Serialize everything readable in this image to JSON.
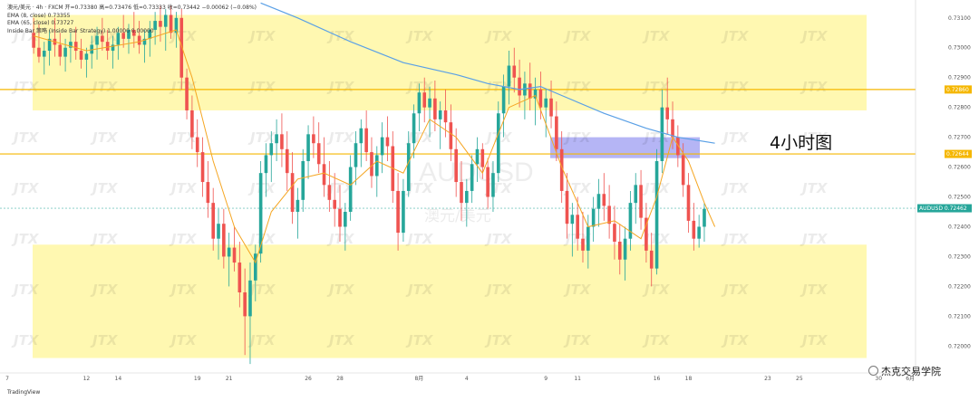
{
  "legend": {
    "line1": "澳元/美元 · 4h · FXCM   开=0.73380 高=0.73476 低=0.73333 收=0.73442 −0.00062 (−0.08%)",
    "line2": "EMA (8, close)  0.73355",
    "line3": "EMA (65, close)  0.73727",
    "line4": "Inside Bar 策略 (Inside Bar Strategy)  1.00000  0.00000"
  },
  "annotation": "4小时图",
  "watermark": "JTX",
  "center_watermark_symbol": "AUDUSD",
  "center_watermark_name": "澳元/美元",
  "tradingview": "TradingView",
  "wechat_label": "杰克交易学院",
  "colors": {
    "up": "#26a69a",
    "down": "#ef5350",
    "ema_fast": "#f5a623",
    "ema_slow": "#5aa0e6",
    "zone_yellow": "#fff7a8",
    "zone_blue": "#9c9cf2",
    "hline": "#f5b700"
  },
  "chart_data": {
    "type": "candlestick",
    "symbol": "AUDUSD",
    "timeframe": "4h",
    "y_ticks": [
      "0.73100",
      "0.73000",
      "0.72900",
      "0.72800",
      "0.72700",
      "0.72600",
      "0.72500",
      "0.72400",
      "0.72300",
      "0.72200",
      "0.72100",
      "0.72000"
    ],
    "price_labels": [
      {
        "value": 0.7286,
        "text": "0.72860",
        "color": "#f5b700"
      },
      {
        "value": 0.72644,
        "text": "0.72644",
        "color": "#f5b700"
      },
      {
        "value": 0.72462,
        "text": "AUDUSD 0.72462",
        "color": "#26a69a"
      }
    ],
    "x_ticks": [
      {
        "label": "7",
        "t": 0
      },
      {
        "label": "12",
        "t": 15
      },
      {
        "label": "14",
        "t": 21
      },
      {
        "label": "19",
        "t": 36
      },
      {
        "label": "21",
        "t": 42
      },
      {
        "label": "26",
        "t": 57
      },
      {
        "label": "28",
        "t": 63
      },
      {
        "label": "8月",
        "t": 78
      },
      {
        "label": "4",
        "t": 87
      },
      {
        "label": "9",
        "t": 102
      },
      {
        "label": "11",
        "t": 108
      },
      {
        "label": "16",
        "t": 123
      },
      {
        "label": "18",
        "t": 129
      },
      {
        "label": "23",
        "t": 144
      },
      {
        "label": "25",
        "t": 150
      },
      {
        "label": "30",
        "t": 165
      },
      {
        "label": "6月",
        "t": 171
      }
    ],
    "ylim": [
      0.7191,
      0.7316
    ],
    "zones": [
      {
        "from": 0.7279,
        "to": 0.7311,
        "color": "yellow"
      },
      {
        "from": 0.7196,
        "to": 0.7234,
        "color": "yellow"
      },
      {
        "from": 0.7263,
        "to": 0.727,
        "color": "blue"
      }
    ],
    "candles": [
      [
        0.7305,
        0.731,
        0.7298,
        0.73
      ],
      [
        0.73,
        0.7308,
        0.7295,
        0.7297
      ],
      [
        0.7297,
        0.7302,
        0.7291,
        0.7299
      ],
      [
        0.7299,
        0.7306,
        0.7294,
        0.7303
      ],
      [
        0.7303,
        0.731,
        0.7297,
        0.7301
      ],
      [
        0.7301,
        0.7305,
        0.7294,
        0.7297
      ],
      [
        0.7297,
        0.7303,
        0.7292,
        0.73
      ],
      [
        0.73,
        0.7305,
        0.7295,
        0.7302
      ],
      [
        0.7302,
        0.7307,
        0.7296,
        0.7299
      ],
      [
        0.7299,
        0.7303,
        0.7293,
        0.7296
      ],
      [
        0.7296,
        0.73,
        0.729,
        0.7298
      ],
      [
        0.7298,
        0.7304,
        0.7293,
        0.7301
      ],
      [
        0.7301,
        0.7307,
        0.7296,
        0.7304
      ],
      [
        0.7304,
        0.731,
        0.7299,
        0.7302
      ],
      [
        0.7302,
        0.7306,
        0.7296,
        0.7299
      ],
      [
        0.7299,
        0.7304,
        0.7293,
        0.7301
      ],
      [
        0.7301,
        0.7307,
        0.7296,
        0.7305
      ],
      [
        0.7305,
        0.7311,
        0.73,
        0.7303
      ],
      [
        0.7303,
        0.7308,
        0.7298,
        0.7306
      ],
      [
        0.7306,
        0.7312,
        0.73,
        0.7304
      ],
      [
        0.7304,
        0.7309,
        0.7298,
        0.7301
      ],
      [
        0.7301,
        0.7306,
        0.7295,
        0.7303
      ],
      [
        0.7303,
        0.7309,
        0.7297,
        0.7306
      ],
      [
        0.7306,
        0.7312,
        0.7301,
        0.7309
      ],
      [
        0.7309,
        0.7314,
        0.7302,
        0.7307
      ],
      [
        0.7307,
        0.7313,
        0.7299,
        0.7311
      ],
      [
        0.7311,
        0.7314,
        0.7303,
        0.7305
      ],
      [
        0.7305,
        0.7312,
        0.73,
        0.731
      ],
      [
        0.731,
        0.7313,
        0.7286,
        0.729
      ],
      [
        0.729,
        0.7293,
        0.7276,
        0.7279
      ],
      [
        0.7279,
        0.7284,
        0.7266,
        0.727
      ],
      [
        0.727,
        0.7276,
        0.726,
        0.7265
      ],
      [
        0.7265,
        0.727,
        0.725,
        0.7255
      ],
      [
        0.7255,
        0.7262,
        0.7243,
        0.7248
      ],
      [
        0.7248,
        0.7253,
        0.7232,
        0.7236
      ],
      [
        0.7236,
        0.7246,
        0.7229,
        0.7241
      ],
      [
        0.7241,
        0.7246,
        0.7226,
        0.723
      ],
      [
        0.723,
        0.7238,
        0.722,
        0.7233
      ],
      [
        0.7233,
        0.724,
        0.7225,
        0.7228
      ],
      [
        0.7228,
        0.7235,
        0.7213,
        0.7218
      ],
      [
        0.7218,
        0.7226,
        0.7197,
        0.721
      ],
      [
        0.721,
        0.7228,
        0.7194,
        0.7222
      ],
      [
        0.7222,
        0.7234,
        0.7215,
        0.7231
      ],
      [
        0.7231,
        0.7262,
        0.7228,
        0.7258
      ],
      [
        0.7258,
        0.7268,
        0.725,
        0.7264
      ],
      [
        0.7264,
        0.7272,
        0.7255,
        0.7268
      ],
      [
        0.7268,
        0.7276,
        0.7262,
        0.7271
      ],
      [
        0.7271,
        0.7278,
        0.726,
        0.7266
      ],
      [
        0.7266,
        0.7272,
        0.7252,
        0.7258
      ],
      [
        0.7258,
        0.7265,
        0.7241,
        0.7245
      ],
      [
        0.7245,
        0.7253,
        0.7236,
        0.7249
      ],
      [
        0.7249,
        0.7266,
        0.7245,
        0.7262
      ],
      [
        0.7262,
        0.7274,
        0.7256,
        0.7271
      ],
      [
        0.7271,
        0.7277,
        0.7263,
        0.7268
      ],
      [
        0.7268,
        0.7275,
        0.7258,
        0.7261
      ],
      [
        0.7261,
        0.727,
        0.725,
        0.7254
      ],
      [
        0.7254,
        0.7262,
        0.7245,
        0.7249
      ],
      [
        0.7249,
        0.7258,
        0.724,
        0.7246
      ],
      [
        0.7246,
        0.7254,
        0.7235,
        0.724
      ],
      [
        0.724,
        0.7248,
        0.7232,
        0.7245
      ],
      [
        0.7245,
        0.7264,
        0.7242,
        0.726
      ],
      [
        0.726,
        0.7272,
        0.7254,
        0.7268
      ],
      [
        0.7268,
        0.7276,
        0.726,
        0.7273
      ],
      [
        0.7273,
        0.7279,
        0.7262,
        0.7265
      ],
      [
        0.7265,
        0.727,
        0.7253,
        0.7257
      ],
      [
        0.7257,
        0.7267,
        0.725,
        0.7264
      ],
      [
        0.7264,
        0.7275,
        0.7258,
        0.727
      ],
      [
        0.727,
        0.7277,
        0.7262,
        0.7267
      ],
      [
        0.7267,
        0.7272,
        0.7248,
        0.7252
      ],
      [
        0.7252,
        0.7258,
        0.7232,
        0.7238
      ],
      [
        0.7238,
        0.7256,
        0.7235,
        0.7252
      ],
      [
        0.7252,
        0.7272,
        0.725,
        0.7268
      ],
      [
        0.7268,
        0.7281,
        0.7263,
        0.7278
      ],
      [
        0.7278,
        0.7288,
        0.7272,
        0.7285
      ],
      [
        0.7285,
        0.729,
        0.7275,
        0.728
      ],
      [
        0.728,
        0.7287,
        0.727,
        0.7283
      ],
      [
        0.7283,
        0.7289,
        0.7272,
        0.7276
      ],
      [
        0.7276,
        0.7282,
        0.7266,
        0.7279
      ],
      [
        0.7279,
        0.7286,
        0.727,
        0.7275
      ],
      [
        0.7275,
        0.7281,
        0.7262,
        0.7266
      ],
      [
        0.7266,
        0.7273,
        0.725,
        0.7255
      ],
      [
        0.7255,
        0.7262,
        0.7242,
        0.7248
      ],
      [
        0.7248,
        0.7256,
        0.724,
        0.7252
      ],
      [
        0.7252,
        0.7264,
        0.7248,
        0.7261
      ],
      [
        0.7261,
        0.727,
        0.7255,
        0.7266
      ],
      [
        0.7266,
        0.7268,
        0.7256,
        0.726
      ],
      [
        0.726,
        0.7263,
        0.7246,
        0.725
      ],
      [
        0.725,
        0.7262,
        0.7245,
        0.7258
      ],
      [
        0.7258,
        0.7282,
        0.7255,
        0.7278
      ],
      [
        0.7278,
        0.7291,
        0.727,
        0.7287
      ],
      [
        0.7287,
        0.7299,
        0.7281,
        0.7294
      ],
      [
        0.7294,
        0.73,
        0.7285,
        0.729
      ],
      [
        0.729,
        0.7296,
        0.728,
        0.7284
      ],
      [
        0.7284,
        0.7292,
        0.7276,
        0.7288
      ],
      [
        0.7288,
        0.7295,
        0.7279,
        0.7283
      ],
      [
        0.7283,
        0.729,
        0.7274,
        0.7286
      ],
      [
        0.7286,
        0.7292,
        0.7276,
        0.728
      ],
      [
        0.728,
        0.7286,
        0.727,
        0.7283
      ],
      [
        0.7283,
        0.7289,
        0.7273,
        0.7277
      ],
      [
        0.7277,
        0.7282,
        0.7262,
        0.7266
      ],
      [
        0.7266,
        0.7272,
        0.7248,
        0.7252
      ],
      [
        0.7252,
        0.7258,
        0.7236,
        0.7241
      ],
      [
        0.7241,
        0.7248,
        0.723,
        0.7244
      ],
      [
        0.7244,
        0.725,
        0.7232,
        0.7236
      ],
      [
        0.7236,
        0.7245,
        0.7228,
        0.7232
      ],
      [
        0.7232,
        0.7244,
        0.7226,
        0.724
      ],
      [
        0.724,
        0.725,
        0.7235,
        0.7246
      ],
      [
        0.7246,
        0.7256,
        0.724,
        0.7251
      ],
      [
        0.7251,
        0.7258,
        0.7242,
        0.7247
      ],
      [
        0.7247,
        0.7254,
        0.7236,
        0.7241
      ],
      [
        0.7241,
        0.7247,
        0.7229,
        0.7235
      ],
      [
        0.7235,
        0.7241,
        0.7224,
        0.7229
      ],
      [
        0.7229,
        0.724,
        0.7222,
        0.7236
      ],
      [
        0.7236,
        0.7252,
        0.7232,
        0.7248
      ],
      [
        0.7248,
        0.7258,
        0.7241,
        0.7254
      ],
      [
        0.7254,
        0.7259,
        0.7239,
        0.7243
      ],
      [
        0.7243,
        0.7248,
        0.7228,
        0.7232
      ],
      [
        0.7232,
        0.7238,
        0.722,
        0.7226
      ],
      [
        0.7226,
        0.7266,
        0.7224,
        0.7262
      ],
      [
        0.7262,
        0.7286,
        0.7258,
        0.728
      ],
      [
        0.728,
        0.729,
        0.7271,
        0.7276
      ],
      [
        0.7276,
        0.7282,
        0.7266,
        0.727
      ],
      [
        0.727,
        0.7274,
        0.726,
        0.7264
      ],
      [
        0.7264,
        0.7268,
        0.725,
        0.7254
      ],
      [
        0.7254,
        0.7258,
        0.7238,
        0.7242
      ],
      [
        0.7242,
        0.7248,
        0.7232,
        0.7236
      ],
      [
        0.7236,
        0.7244,
        0.7233,
        0.724
      ],
      [
        0.724,
        0.7248,
        0.7235,
        0.7246
      ]
    ],
    "ema_fast": [
      [
        0,
        0.7304
      ],
      [
        10,
        0.7299
      ],
      [
        20,
        0.7302
      ],
      [
        27,
        0.7306
      ],
      [
        30,
        0.729
      ],
      [
        34,
        0.7262
      ],
      [
        38,
        0.724
      ],
      [
        42,
        0.7228
      ],
      [
        45,
        0.7245
      ],
      [
        50,
        0.7256
      ],
      [
        55,
        0.7258
      ],
      [
        60,
        0.7254
      ],
      [
        65,
        0.7262
      ],
      [
        70,
        0.7258
      ],
      [
        75,
        0.7276
      ],
      [
        80,
        0.727
      ],
      [
        85,
        0.7258
      ],
      [
        90,
        0.728
      ],
      [
        95,
        0.7284
      ],
      [
        100,
        0.726
      ],
      [
        105,
        0.724
      ],
      [
        110,
        0.7242
      ],
      [
        115,
        0.7236
      ],
      [
        118,
        0.725
      ],
      [
        121,
        0.727
      ],
      [
        124,
        0.7262
      ],
      [
        127,
        0.7248
      ],
      [
        129,
        0.724
      ]
    ],
    "ema_slow": [
      [
        43,
        0.7315
      ],
      [
        50,
        0.731
      ],
      [
        60,
        0.7302
      ],
      [
        70,
        0.7295
      ],
      [
        80,
        0.7291
      ],
      [
        86,
        0.7288
      ],
      [
        92,
        0.7286
      ],
      [
        96,
        0.7287
      ],
      [
        100,
        0.7284
      ],
      [
        108,
        0.7278
      ],
      [
        116,
        0.7273
      ],
      [
        122,
        0.727
      ],
      [
        129,
        0.7268
      ]
    ]
  }
}
